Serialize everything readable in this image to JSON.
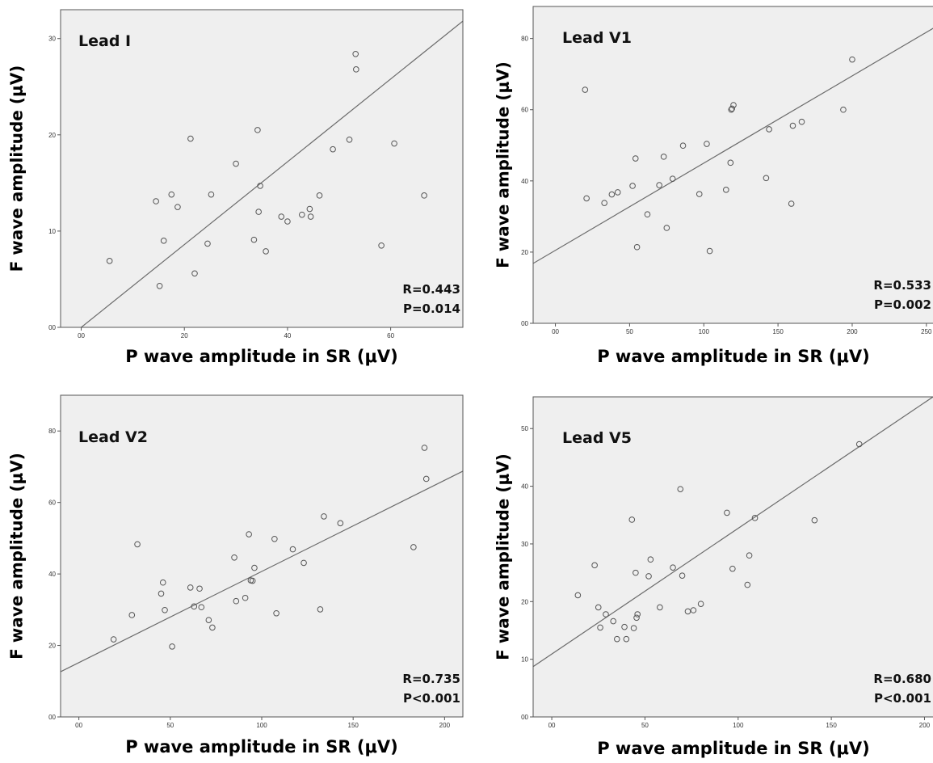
{
  "figure": {
    "colors": {
      "plot_background": "#efefef",
      "frame": "#555555",
      "points": "#555555",
      "fit_line": "#6b6b6b"
    }
  },
  "chart_data": [
    {
      "type": "scatter",
      "panel_label": "Lead I",
      "xlabel": "P wave amplitude in SR (μV)",
      "ylabel": "F wave amplitude (μV)",
      "xlim": [
        -4,
        74
      ],
      "ylim": [
        0,
        33
      ],
      "x_ticks": [
        0,
        20,
        40,
        60
      ],
      "x_tick_labels": [
        "00",
        "20",
        "40",
        "60"
      ],
      "y_ticks": [
        0,
        10,
        20,
        30
      ],
      "y_tick_labels": [
        "00",
        "10",
        "20",
        "30"
      ],
      "fit_line": {
        "slope": 0.43,
        "intercept": 0
      },
      "stat_r": "R=0.443",
      "stat_p": "P=0.014",
      "x": [
        5.5,
        14.5,
        15.2,
        16,
        17.5,
        18.7,
        21.2,
        22,
        24.5,
        25.2,
        30,
        33.5,
        34.2,
        34.4,
        34.7,
        35.8,
        38.8,
        40,
        42.8,
        44.3,
        44.5,
        46.2,
        48.8,
        52,
        53.2,
        53.3,
        58.2,
        60.7,
        66.5
      ],
      "y": [
        6.9,
        13.1,
        4.3,
        9,
        13.8,
        12.5,
        19.6,
        5.6,
        8.7,
        13.8,
        17,
        9.1,
        20.5,
        12,
        14.7,
        7.9,
        11.5,
        11,
        11.7,
        12.3,
        11.5,
        13.7,
        18.5,
        19.5,
        28.4,
        26.8,
        8.5,
        19.1,
        13.7
      ]
    },
    {
      "type": "scatter",
      "panel_label": "Lead V1",
      "xlabel": "P wave amplitude in SR (μV)",
      "ylabel": "F wave amplitude (μV)",
      "xlim": [
        -15,
        255
      ],
      "ylim": [
        0,
        89
      ],
      "x_ticks": [
        0,
        50,
        100,
        150,
        200,
        250
      ],
      "x_tick_labels": [
        "00",
        "50",
        "100",
        "150",
        "200",
        "250"
      ],
      "y_ticks": [
        0,
        20,
        40,
        60,
        80
      ],
      "y_tick_labels": [
        "00",
        "20",
        "40",
        "60",
        "80"
      ],
      "fit_line": {
        "slope": 0.245,
        "intercept": 20.5
      },
      "stat_r": "R=0.533",
      "stat_p": "P=0.002",
      "x": [
        20,
        21,
        33,
        38,
        42,
        52,
        54,
        55,
        62,
        70,
        73,
        75,
        79,
        86,
        97,
        102,
        104,
        115,
        118,
        118.5,
        119,
        120,
        142,
        144,
        159,
        160,
        166,
        194,
        200
      ],
      "y": [
        65.6,
        35.1,
        33.8,
        36.2,
        36.8,
        38.6,
        46.3,
        21.4,
        30.6,
        38.8,
        46.8,
        26.8,
        40.6,
        49.9,
        36.3,
        50.4,
        20.3,
        37.5,
        45.1,
        60,
        60.3,
        61.3,
        40.8,
        54.5,
        33.6,
        55.5,
        56.6,
        60,
        74.1
      ]
    },
    {
      "type": "scatter",
      "panel_label": "Lead V2",
      "xlabel": "P wave amplitude in SR (μV)",
      "ylabel": "F wave amplitude (μV)",
      "xlim": [
        -10,
        210
      ],
      "ylim": [
        0,
        90
      ],
      "x_ticks": [
        0,
        50,
        100,
        150,
        200
      ],
      "x_tick_labels": [
        "00",
        "50",
        "100",
        "150",
        "200"
      ],
      "y_ticks": [
        0,
        20,
        40,
        60,
        80
      ],
      "y_tick_labels": [
        "00",
        "20",
        "40",
        "60",
        "80"
      ],
      "fit_line": {
        "slope": 0.255,
        "intercept": 15.2
      },
      "stat_r": "R=0.735",
      "stat_p": "P<0.001",
      "x": [
        19,
        29,
        32,
        45,
        46,
        47,
        51,
        61,
        63,
        66,
        67,
        71,
        73,
        85,
        86,
        91,
        93,
        94,
        95,
        96,
        108,
        107,
        117,
        123,
        132,
        134,
        143,
        183,
        189,
        190
      ],
      "y": [
        21.7,
        28.5,
        48.3,
        34.5,
        37.6,
        29.9,
        19.7,
        36.2,
        30.9,
        35.9,
        30.7,
        27.1,
        25,
        44.6,
        32.4,
        33.3,
        51.1,
        38.2,
        38.1,
        41.7,
        29,
        49.8,
        46.9,
        43.1,
        30.1,
        56.1,
        54.2,
        47.5,
        75.3,
        66.6
      ]
    },
    {
      "type": "scatter",
      "panel_label": "Lead V5",
      "xlabel": "P wave amplitude in SR (μV)",
      "ylabel": "F wave amplitude (μV)",
      "xlim": [
        -10,
        205
      ],
      "ylim": [
        0,
        55.5
      ],
      "x_ticks": [
        0,
        50,
        100,
        150,
        200
      ],
      "x_tick_labels": [
        "00",
        "50",
        "100",
        "150",
        "200"
      ],
      "y_ticks": [
        0,
        10,
        20,
        30,
        40,
        50
      ],
      "y_tick_labels": [
        "00",
        "10",
        "20",
        "30",
        "40",
        "50"
      ],
      "fit_line": {
        "slope": 0.218,
        "intercept": 10.9
      },
      "stat_r": "R=0.680",
      "stat_p": "P<0.001",
      "x": [
        14,
        23,
        25,
        26,
        29,
        33,
        35,
        39,
        40,
        43,
        44,
        45,
        45.5,
        46,
        52,
        53,
        58,
        65,
        69,
        70,
        73,
        76,
        80,
        94,
        97,
        105,
        106,
        109,
        141,
        165
      ],
      "y": [
        21.1,
        26.3,
        19,
        15.5,
        17.8,
        16.6,
        13.5,
        15.6,
        13.5,
        34.2,
        15.4,
        25,
        17.2,
        17.8,
        24.4,
        27.3,
        19,
        25.9,
        39.5,
        24.5,
        18.3,
        18.5,
        19.6,
        35.4,
        25.7,
        22.9,
        28,
        34.5,
        34.1,
        47.3
      ]
    }
  ]
}
